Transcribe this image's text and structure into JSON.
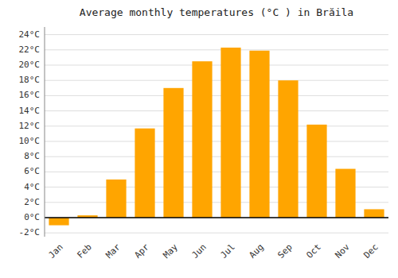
{
  "chart_data": {
    "type": "bar",
    "title": "Average monthly temperatures (°C ) in Brăila",
    "categories": [
      "Jan",
      "Feb",
      "Mar",
      "Apr",
      "May",
      "Jun",
      "Jul",
      "Aug",
      "Sep",
      "Oct",
      "Nov",
      "Dec"
    ],
    "values": [
      -1.0,
      0.3,
      5.0,
      11.7,
      17.0,
      20.5,
      22.3,
      21.9,
      18.0,
      12.2,
      6.4,
      1.1
    ],
    "color": "#FFA500",
    "ylim": [
      -2.5,
      25
    ],
    "yticks": [
      {
        "value": -2,
        "label": "-2°C"
      },
      {
        "value": 0,
        "label": "0°C"
      },
      {
        "value": 2,
        "label": "2°C"
      },
      {
        "value": 4,
        "label": "4°C"
      },
      {
        "value": 6,
        "label": "6°C"
      },
      {
        "value": 8,
        "label": "8°C"
      },
      {
        "value": 10,
        "label": "10°C"
      },
      {
        "value": 12,
        "label": "12°C"
      },
      {
        "value": 14,
        "label": "14°C"
      },
      {
        "value": 16,
        "label": "16°C"
      },
      {
        "value": 18,
        "label": "18°C"
      },
      {
        "value": 20,
        "label": "20°C"
      },
      {
        "value": 22,
        "label": "22°C"
      },
      {
        "value": 24,
        "label": "24°C"
      }
    ],
    "grid": true
  }
}
